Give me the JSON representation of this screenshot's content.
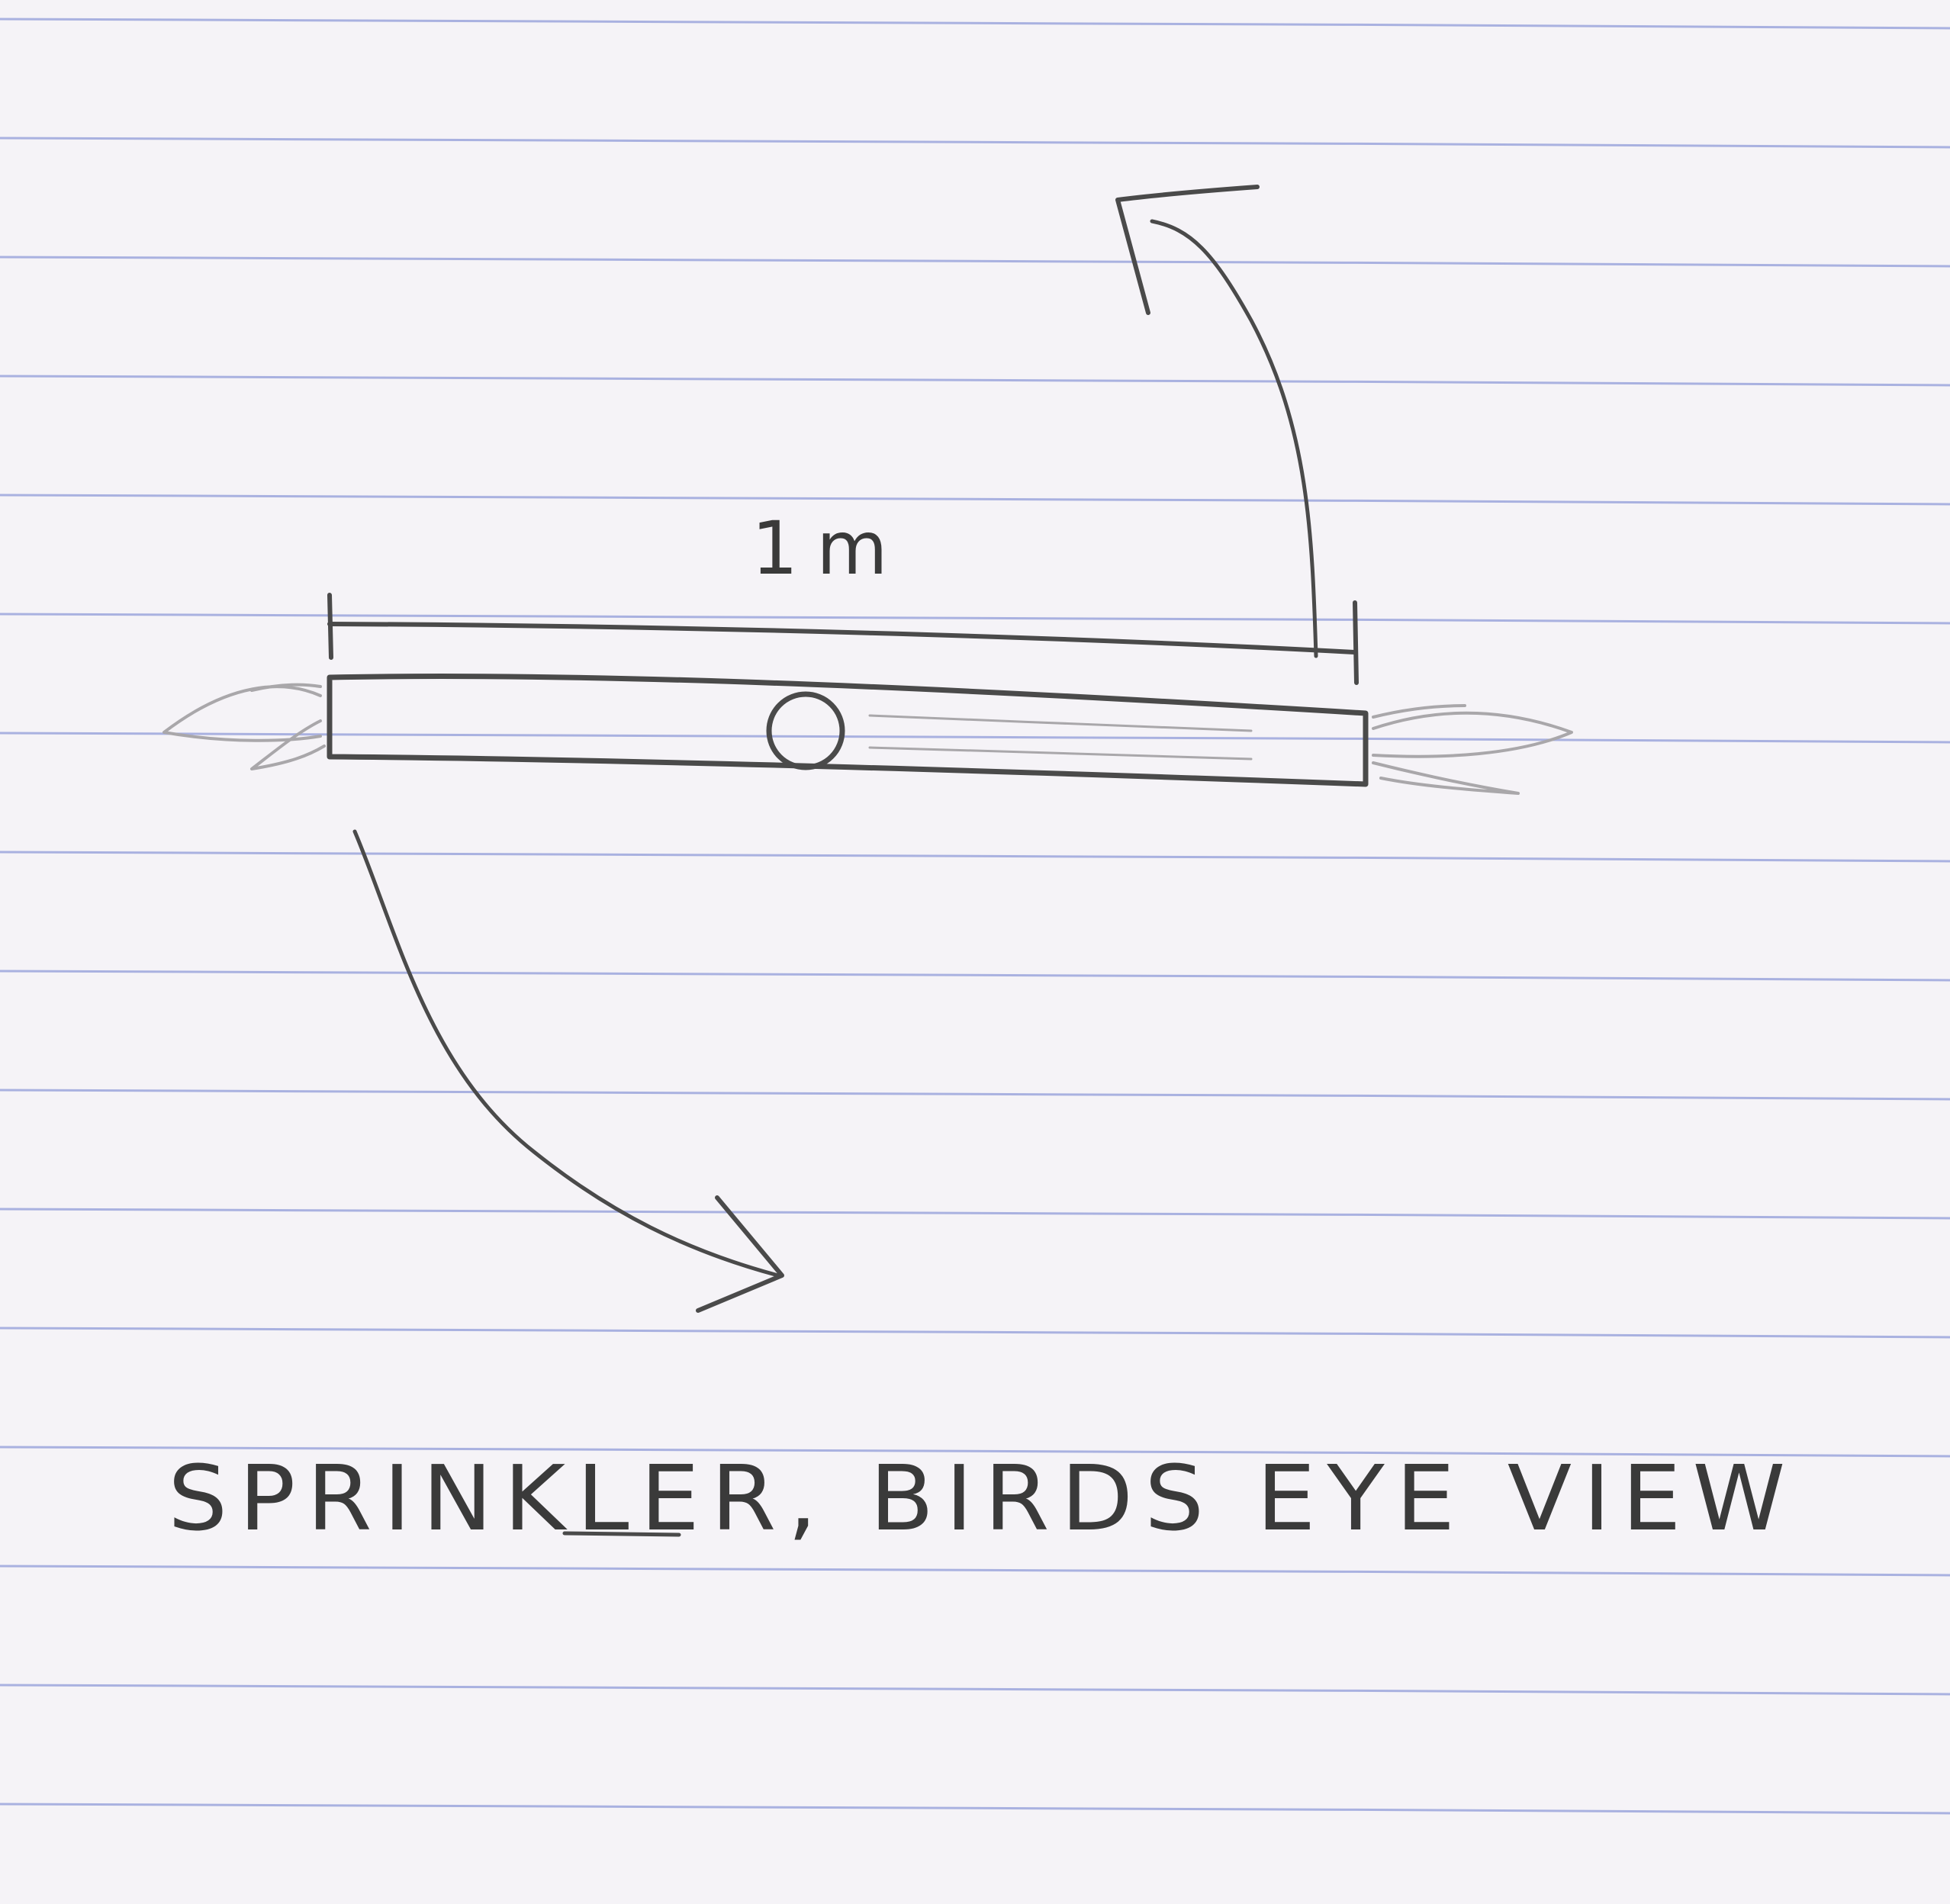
{
  "diagram": {
    "dimension_label": "1m",
    "caption": "SPRINKLER, BIRDS EYE VIEW"
  },
  "colors": {
    "paper": "#f5f3f7",
    "rule_line": "#8f9bd8",
    "pencil": "#4a4a4a"
  }
}
